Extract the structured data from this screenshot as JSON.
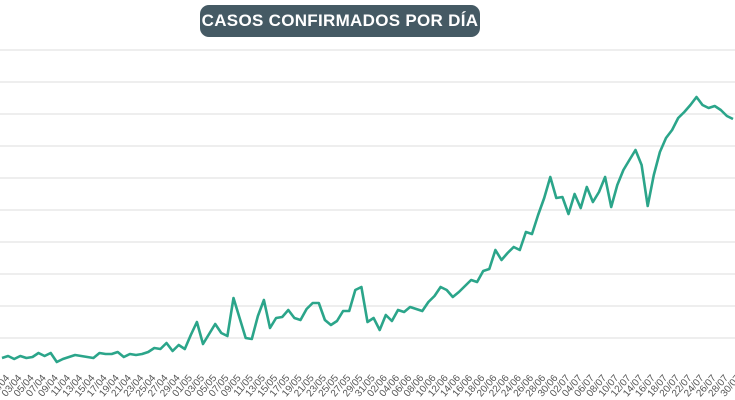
{
  "chart_data": {
    "type": "line",
    "title": "CASOS CONFIRMADOS POR DÍA",
    "categories": [
      "01/04",
      null,
      "03/04",
      null,
      "05/04",
      null,
      "07/04",
      null,
      "09/04",
      null,
      "11/04",
      null,
      "13/04",
      null,
      "15/04",
      null,
      "17/04",
      null,
      "19/04",
      null,
      "21/04",
      null,
      "23/04",
      null,
      "25/04",
      null,
      "27/04",
      null,
      "29/04",
      null,
      "01/05",
      null,
      "03/05",
      null,
      "05/05",
      null,
      "07/05",
      null,
      "09/05",
      null,
      "11/05",
      null,
      "13/05",
      null,
      "15/05",
      null,
      "17/05",
      null,
      "19/05",
      null,
      "21/05",
      null,
      "23/05",
      null,
      "25/05",
      null,
      "27/05",
      null,
      "29/05",
      null,
      "31/05",
      null,
      "02/06",
      null,
      "04/06",
      null,
      "06/06",
      null,
      "08/06",
      null,
      "10/06",
      null,
      "12/06",
      null,
      "14/06",
      null,
      "16/06",
      null,
      "18/06",
      null,
      "20/06",
      null,
      "22/06",
      null,
      "24/06",
      null,
      "26/06",
      null,
      "28/06",
      null,
      "30/06",
      null,
      "02/07",
      null,
      "04/07",
      null,
      "06/07",
      null,
      "08/07",
      null,
      "10/07",
      null,
      "12/07",
      null,
      "14/07",
      null,
      "16/07",
      null,
      "18/07",
      null,
      "20/07",
      null,
      "22/07",
      null,
      "24/07",
      null,
      "26/07",
      null,
      "28/07",
      null,
      "30/07"
    ],
    "series": [
      {
        "color": "#2ba58a",
        "values": [
          12,
          14,
          11,
          14,
          12,
          13,
          17,
          14,
          17,
          8,
          11,
          13,
          15,
          14,
          13,
          12,
          17,
          16,
          16,
          18,
          13,
          16,
          15,
          16,
          18,
          22,
          21,
          27,
          19,
          25,
          21,
          35,
          48,
          26,
          36,
          46,
          37,
          34,
          72,
          52,
          32,
          31,
          54,
          70,
          42,
          52,
          53,
          60,
          52,
          50,
          61,
          67,
          67,
          50,
          45,
          49,
          59,
          59,
          80,
          83,
          48,
          52,
          40,
          55,
          49,
          60,
          58,
          63,
          61,
          59,
          68,
          74,
          83,
          80,
          73,
          78,
          84,
          90,
          88,
          99,
          101,
          120,
          110,
          117,
          123,
          120,
          138,
          136,
          155,
          172,
          193,
          172,
          173,
          156,
          176,
          162,
          183,
          168,
          178,
          193,
          163,
          185,
          200,
          210,
          220,
          205,
          164,
          195,
          218,
          232,
          240,
          252,
          258,
          265,
          273,
          265,
          262,
          264,
          260,
          254,
          251
        ]
      }
    ],
    "ylim": [
      0,
      352
    ],
    "yticks": [
      32,
      64,
      96,
      128,
      160,
      192,
      224,
      256,
      288,
      320
    ],
    "grid": true
  }
}
